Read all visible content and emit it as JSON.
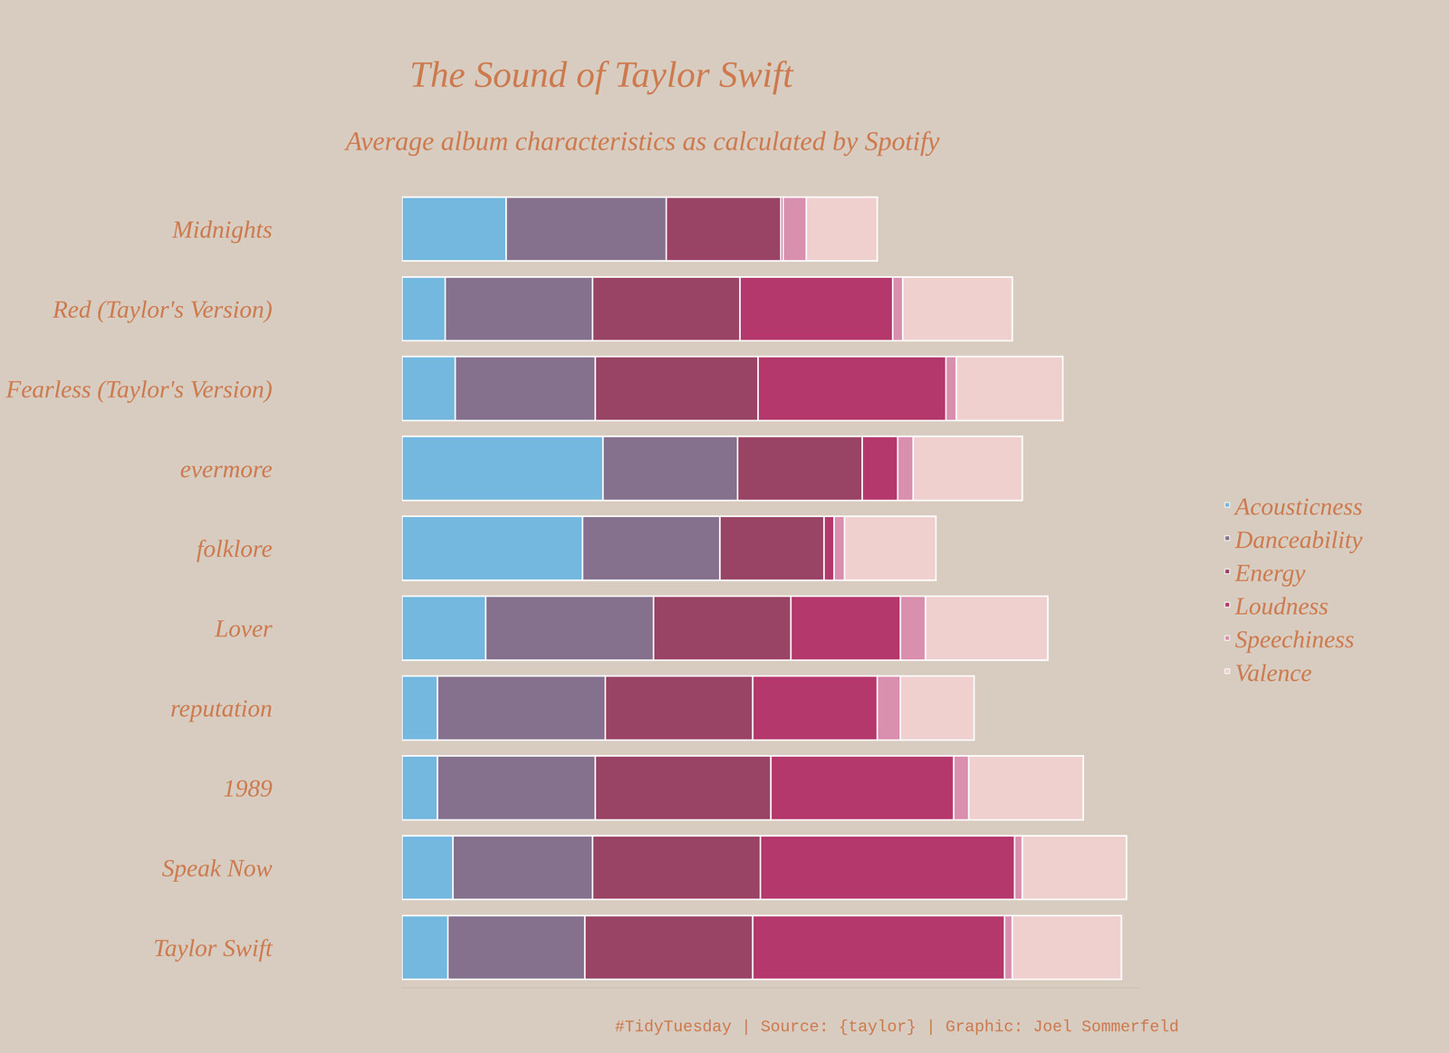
{
  "chart_data": {
    "type": "bar",
    "title": "The Sound of Taylor Swift",
    "subtitle": "Average album characteristics as calculated by Spotify",
    "annotations": [
      "#TidyTuesday | Source: {taylor} | Graphic: Joel Sommerfeld"
    ],
    "orientation": "horizontal",
    "stacked": true,
    "grid": false,
    "legend": "right",
    "tick_labels": "y",
    "xlim": [
      0,
      2.9
    ],
    "xticks": [],
    "categories": [
      "Midnights",
      "Red (Taylor's Version)",
      "Fearless (Taylor's Version)",
      "evermore",
      "folklore",
      "Lover",
      "reputation",
      "1989",
      "Speak Now",
      "Taylor Swift"
    ],
    "series": [
      {
        "name": "Acousticness",
        "color": "#74b8df",
        "values": [
          0.41,
          0.17,
          0.21,
          0.79,
          0.71,
          0.33,
          0.14,
          0.14,
          0.2,
          0.18
        ]
      },
      {
        "name": "Danceability",
        "color": "#85718d",
        "values": [
          0.63,
          0.58,
          0.55,
          0.53,
          0.54,
          0.66,
          0.66,
          0.62,
          0.55,
          0.54
        ]
      },
      {
        "name": "Energy",
        "color": "#9a4465",
        "values": [
          0.45,
          0.58,
          0.64,
          0.49,
          0.41,
          0.54,
          0.58,
          0.69,
          0.66,
          0.66
        ]
      },
      {
        "name": "Loudness",
        "color": "#b5386c",
        "values": [
          0.01,
          0.6,
          0.74,
          0.14,
          0.04,
          0.43,
          0.49,
          0.72,
          1.0,
          0.99
        ]
      },
      {
        "name": "Speechiness",
        "color": "#d98fae",
        "values": [
          0.09,
          0.04,
          0.04,
          0.06,
          0.04,
          0.1,
          0.09,
          0.06,
          0.03,
          0.03
        ]
      },
      {
        "name": "Valence",
        "color": "#efd0cf",
        "values": [
          0.28,
          0.43,
          0.42,
          0.43,
          0.36,
          0.48,
          0.29,
          0.45,
          0.41,
          0.43
        ]
      }
    ]
  }
}
